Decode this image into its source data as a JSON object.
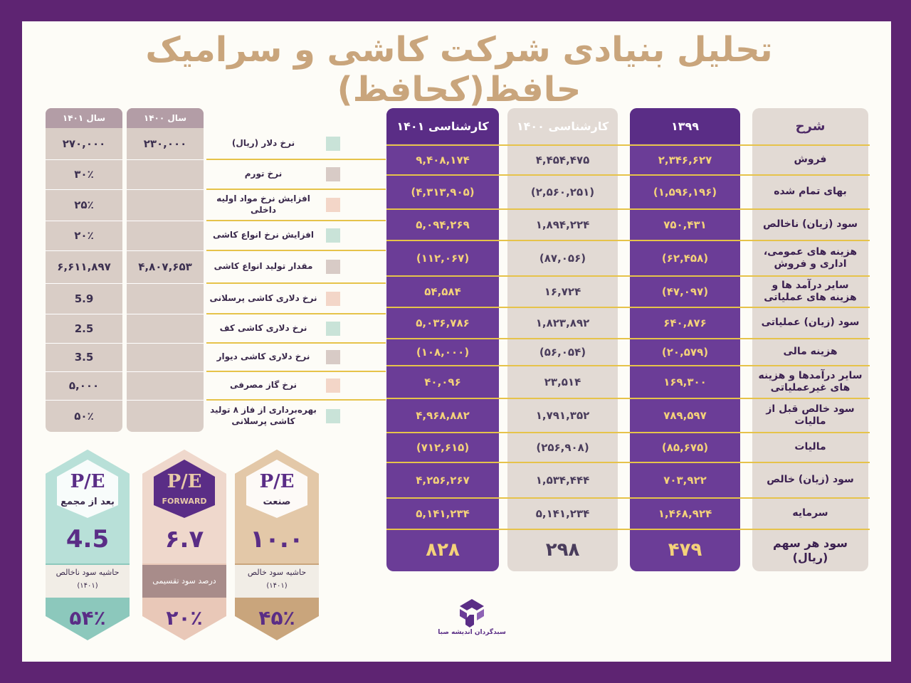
{
  "title": "تحلیل بنیادی  شرکت کاشی و سرامیک حافظ(کحافظ)",
  "main_table": {
    "headers": {
      "label": "شرح",
      "c1399": "۱۳۹۹",
      "c1400": "کارشناسی ۱۴۰۰",
      "c1401": "کارشناسی ۱۴۰۱"
    },
    "rows": [
      {
        "label": "فروش",
        "c1399": "۲,۳۴۶,۶۲۷",
        "c1400": "۴,۴۵۴,۴۷۵",
        "c1401": "۹,۴۰۸,۱۷۴"
      },
      {
        "label": "بهای تمام شده",
        "c1399": "(۱,۵۹۶,۱۹۶)",
        "c1400": "(۲,۵۶۰,۲۵۱)",
        "c1401": "(۴,۳۱۳,۹۰۵)"
      },
      {
        "label": "سود (زیان) ناخالص",
        "c1399": "۷۵۰,۴۳۱",
        "c1400": "۱,۸۹۴,۲۲۴",
        "c1401": "۵,۰۹۴,۲۶۹"
      },
      {
        "label": "هزینه های عمومی، اداری و فروش",
        "c1399": "(۶۲,۴۵۸)",
        "c1400": "(۸۷,۰۵۶)",
        "c1401": "(۱۱۲,۰۶۷)"
      },
      {
        "label": "سایر درآمد ها و هزینه های عملیاتی",
        "c1399": "(۴۷,۰۹۷)",
        "c1400": "۱۶,۷۲۴",
        "c1401": "۵۴,۵۸۴"
      },
      {
        "label": "سود (زیان) عملیاتی",
        "c1399": "۶۴۰,۸۷۶",
        "c1400": "۱,۸۲۳,۸۹۲",
        "c1401": "۵,۰۳۶,۷۸۶"
      },
      {
        "label": "هزینه مالی",
        "c1399": "(۲۰,۵۷۹)",
        "c1400": "(۵۶,۰۵۴)",
        "c1401": "(۱۰۸,۰۰۰)"
      },
      {
        "label": "سایر درآمدها و هزینه های غیرعملیاتی",
        "c1399": "۱۶۹,۳۰۰",
        "c1400": "۲۳,۵۱۴",
        "c1401": "۴۰,۰۹۶"
      },
      {
        "label": "سود خالص قبل از مالیات",
        "c1399": "۷۸۹,۵۹۷",
        "c1400": "۱,۷۹۱,۳۵۲",
        "c1401": "۴,۹۶۸,۸۸۲"
      },
      {
        "label": "مالیات",
        "c1399": "(۸۵,۶۷۵)",
        "c1400": "(۲۵۶,۹۰۸)",
        "c1401": "(۷۱۲,۶۱۵)"
      },
      {
        "label": "سود (زیان) خالص",
        "c1399": "۷۰۳,۹۲۲",
        "c1400": "۱,۵۳۴,۴۴۴",
        "c1401": "۴,۲۵۶,۲۶۷"
      },
      {
        "label": "سرمایه",
        "c1399": "۱,۴۶۸,۹۲۴",
        "c1400": "۵,۱۴۱,۲۳۴",
        "c1401": "۵,۱۴۱,۲۳۴"
      },
      {
        "label": "سود هر سهم (ریال)",
        "c1399": "۴۷۹",
        "c1400": "۲۹۸",
        "c1401": "۸۲۸"
      }
    ]
  },
  "assumptions": {
    "headers": {
      "y1401": "سال ۱۴۰۱",
      "y1400": "سال ۱۴۰۰"
    },
    "rows": [
      {
        "label": "نرخ دلار (ریال)",
        "color": "#c9e3d8",
        "y1401": "۲۷۰,۰۰۰",
        "y1400": "۲۳۰,۰۰۰"
      },
      {
        "label": "نرخ تورم",
        "color": "#d8cbc6",
        "y1401": "۳۰٪",
        "y1400": ""
      },
      {
        "label": "افزایش نرخ مواد اولیه داخلی",
        "color": "#f3d6c8",
        "y1401": "۲۵٪",
        "y1400": ""
      },
      {
        "label": "افزایش نرخ انواع کاشی",
        "color": "#c9e3d8",
        "y1401": "۲۰٪",
        "y1400": ""
      },
      {
        "label": "مقدار تولید انواع کاشی",
        "color": "#d8cbc6",
        "y1401": "۶,۶۱۱,۸۹۷",
        "y1400": "۴,۸۰۷,۶۵۳"
      },
      {
        "label": "نرخ دلاری کاشی پرسلانی",
        "color": "#f3d6c8",
        "y1401": "5.9",
        "y1400": ""
      },
      {
        "label": "نرخ دلاری کاشی کف",
        "color": "#c9e3d8",
        "y1401": "2.5",
        "y1400": ""
      },
      {
        "label": "نرخ دلاری کاشی دیوار",
        "color": "#d8cbc6",
        "y1401": "3.5",
        "y1400": ""
      },
      {
        "label": "نرخ گاز مصرفی",
        "color": "#f3d6c8",
        "y1401": "۵,۰۰۰",
        "y1400": ""
      },
      {
        "label": "بهره‌برداری از فاز ۸ تولید کاشی پرسلانی",
        "color": "#c9e3d8",
        "y1401": "۵۰٪",
        "y1400": ""
      }
    ]
  },
  "badges": [
    {
      "pe": "P/E",
      "sub": "بعد از مجمع",
      "value": "4.5",
      "caption": "حاشیه سود ناخالص",
      "caption2": "(۱۴۰۱)",
      "percent": "۵۴٪",
      "color_top": "#b8e0d8",
      "color_bottom": "#8cc8bc",
      "value_color": "#5a2d86"
    },
    {
      "pe": "P/E",
      "sub": "FORWARD",
      "value": "۶.۷",
      "caption": "درصد سود تقسیمی",
      "caption2": "",
      "percent": "۲۰٪",
      "color_top": "#efd8cc",
      "color_bottom": "#e9c8b8",
      "value_color": "#5a2d86"
    },
    {
      "pe": "P/E",
      "sub": "صنعت",
      "value": "۱۰.۰",
      "caption": "حاشیه سود خالص",
      "caption2": "(۱۴۰۱)",
      "percent": "۴۵٪",
      "color_top": "#e3c8a8",
      "color_bottom": "#c9a57c",
      "value_color": "#5a2d86"
    }
  ],
  "logo": {
    "text": "سبدگردان اندیشه صبا",
    "icon": "saba-logo-icon"
  }
}
